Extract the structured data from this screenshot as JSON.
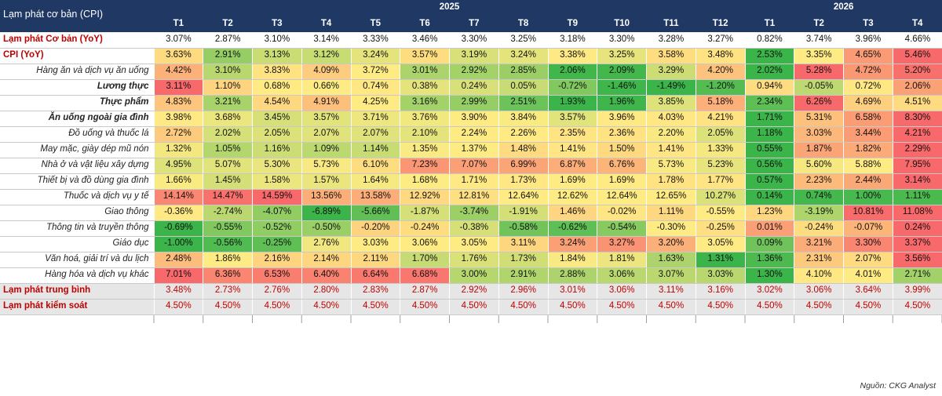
{
  "table_title": "Lạm phát cơ bản (CPI)",
  "years": [
    {
      "label": "2025",
      "span": 12
    },
    {
      "label": "2026",
      "span": 4
    }
  ],
  "months": [
    "T1",
    "T2",
    "T3",
    "T4",
    "T5",
    "T6",
    "T7",
    "T8",
    "T9",
    "T10",
    "T11",
    "T12",
    "T1",
    "T2",
    "T3",
    "T4"
  ],
  "rows": [
    {
      "label": "Lạm phát Cơ bản (YoY)",
      "style": "plain-red",
      "values": [
        "3.07%",
        "2.87%",
        "3.10%",
        "3.14%",
        "3.33%",
        "3.46%",
        "3.30%",
        "3.25%",
        "3.18%",
        "3.30%",
        "3.28%",
        "3.27%",
        "0.82%",
        "3.74%",
        "3.96%",
        "4.66%"
      ]
    },
    {
      "label": "CPI (YoY)",
      "style": "heat-red",
      "values": [
        "3.63%",
        "2.91%",
        "3.13%",
        "3.12%",
        "3.24%",
        "3.57%",
        "3.19%",
        "3.24%",
        "3.38%",
        "3.25%",
        "3.58%",
        "3.48%",
        "2.53%",
        "3.35%",
        "4.65%",
        "5.46%"
      ]
    },
    {
      "label": "Hàng ăn và dịch vụ ăn uống",
      "style": "heat",
      "values": [
        "4.42%",
        "3.10%",
        "3.83%",
        "4.09%",
        "3.72%",
        "3.01%",
        "2.92%",
        "2.85%",
        "2.06%",
        "2.09%",
        "3.29%",
        "4.20%",
        "2.02%",
        "5.28%",
        "4.72%",
        "5.20%"
      ]
    },
    {
      "label": "Lương thực",
      "style": "heat-bold",
      "values": [
        "3.11%",
        "1.10%",
        "0.68%",
        "0.66%",
        "0.74%",
        "0.38%",
        "0.24%",
        "0.05%",
        "-0.72%",
        "-1.46%",
        "-1.49%",
        "-1.20%",
        "0.94%",
        "-0.05%",
        "0.72%",
        "2.06%"
      ]
    },
    {
      "label": "Thực phẩm",
      "style": "heat-bold",
      "values": [
        "4.83%",
        "3.21%",
        "4.54%",
        "4.91%",
        "4.25%",
        "3.16%",
        "2.99%",
        "2.51%",
        "1.93%",
        "1.96%",
        "3.85%",
        "5.18%",
        "2.34%",
        "6.26%",
        "4.69%",
        "4.51%"
      ]
    },
    {
      "label": "Ăn uống ngoài gia đình",
      "style": "heat-bold",
      "values": [
        "3.98%",
        "3.68%",
        "3.45%",
        "3.57%",
        "3.71%",
        "3.76%",
        "3.90%",
        "3.84%",
        "3.57%",
        "3.96%",
        "4.03%",
        "4.21%",
        "1.71%",
        "5.31%",
        "6.58%",
        "8.30%"
      ]
    },
    {
      "label": "Đồ uống và thuốc lá",
      "style": "heat",
      "values": [
        "2.72%",
        "2.02%",
        "2.05%",
        "2.07%",
        "2.07%",
        "2.10%",
        "2.24%",
        "2.26%",
        "2.35%",
        "2.36%",
        "2.20%",
        "2.05%",
        "1.18%",
        "3.03%",
        "3.44%",
        "4.21%"
      ]
    },
    {
      "label": "May mặc, giày dép mũ nón",
      "style": "heat",
      "values": [
        "1.32%",
        "1.05%",
        "1.16%",
        "1.09%",
        "1.14%",
        "1.35%",
        "1.37%",
        "1.48%",
        "1.41%",
        "1.50%",
        "1.41%",
        "1.33%",
        "0.55%",
        "1.87%",
        "1.82%",
        "2.29%"
      ]
    },
    {
      "label": "Nhà ở và vật liệu xây dựng",
      "style": "heat",
      "values": [
        "4.95%",
        "5.07%",
        "5.30%",
        "5.73%",
        "6.10%",
        "7.23%",
        "7.07%",
        "6.99%",
        "6.87%",
        "6.76%",
        "5.73%",
        "5.23%",
        "0.56%",
        "5.60%",
        "5.88%",
        "7.95%"
      ]
    },
    {
      "label": "Thiết bị và đồ dùng gia đình",
      "style": "heat",
      "values": [
        "1.66%",
        "1.45%",
        "1.58%",
        "1.57%",
        "1.64%",
        "1.68%",
        "1.71%",
        "1.73%",
        "1.69%",
        "1.69%",
        "1.78%",
        "1.77%",
        "0.57%",
        "2.23%",
        "2.44%",
        "3.14%"
      ]
    },
    {
      "label": "Thuốc và dịch vụ y tế",
      "style": "heat",
      "values": [
        "14.14%",
        "14.47%",
        "14.59%",
        "13.56%",
        "13.58%",
        "12.92%",
        "12.81%",
        "12.64%",
        "12.62%",
        "12.64%",
        "12.65%",
        "10.27%",
        "0.14%",
        "0.74%",
        "1.00%",
        "1.11%"
      ]
    },
    {
      "label": "Giao thông",
      "style": "heat",
      "values": [
        "-0.36%",
        "-2.74%",
        "-4.07%",
        "-6.89%",
        "-5.66%",
        "-1.87%",
        "-3.74%",
        "-1.91%",
        "1.46%",
        "-0.02%",
        "1.11%",
        "-0.55%",
        "1.23%",
        "-3.19%",
        "10.81%",
        "11.08%"
      ]
    },
    {
      "label": "Thông tin và truyền thông",
      "style": "heat",
      "values": [
        "-0.69%",
        "-0.55%",
        "-0.52%",
        "-0.50%",
        "-0.20%",
        "-0.24%",
        "-0.38%",
        "-0.58%",
        "-0.62%",
        "-0.54%",
        "-0.30%",
        "-0.25%",
        "0.01%",
        "-0.24%",
        "-0.07%",
        "0.24%"
      ]
    },
    {
      "label": "Giáo dục",
      "style": "heat",
      "values": [
        "-1.00%",
        "-0.56%",
        "-0.25%",
        "2.76%",
        "3.03%",
        "3.06%",
        "3.05%",
        "3.11%",
        "3.24%",
        "3.27%",
        "3.20%",
        "3.05%",
        "0.09%",
        "3.21%",
        "3.30%",
        "3.37%"
      ]
    },
    {
      "label": "Văn hoá, giải trí và du lịch",
      "style": "heat",
      "values": [
        "2.48%",
        "1.86%",
        "2.16%",
        "2.14%",
        "2.11%",
        "1.70%",
        "1.76%",
        "1.73%",
        "1.84%",
        "1.81%",
        "1.63%",
        "1.31%",
        "1.36%",
        "2.31%",
        "2.07%",
        "3.56%"
      ]
    },
    {
      "label": "Hàng hóa và dịch vụ khác",
      "style": "heat",
      "values": [
        "7.01%",
        "6.36%",
        "6.53%",
        "6.40%",
        "6.64%",
        "6.68%",
        "3.00%",
        "2.91%",
        "2.88%",
        "3.06%",
        "3.07%",
        "3.03%",
        "1.30%",
        "4.10%",
        "4.01%",
        "2.71%"
      ]
    },
    {
      "label": "Lạm phát trung bình",
      "style": "grey",
      "values": [
        "3.48%",
        "2.73%",
        "2.76%",
        "2.80%",
        "2.83%",
        "2.87%",
        "2.92%",
        "2.96%",
        "3.01%",
        "3.06%",
        "3.11%",
        "3.16%",
        "3.02%",
        "3.06%",
        "3.64%",
        "3.99%"
      ]
    },
    {
      "label": "Lạm phát kiểm soát",
      "style": "grey",
      "values": [
        "4.50%",
        "4.50%",
        "4.50%",
        "4.50%",
        "4.50%",
        "4.50%",
        "4.50%",
        "4.50%",
        "4.50%",
        "4.50%",
        "4.50%",
        "4.50%",
        "4.50%",
        "4.50%",
        "4.50%",
        "4.50%"
      ]
    }
  ],
  "heat_colors": {
    "green": "#3bb54a",
    "yellow": "#ffeb84",
    "red": "#f8696b"
  },
  "footer": "Nguồn: CKG Analyst",
  "chart_data": {
    "type": "heatmap",
    "title": "Lạm phát cơ bản (CPI)",
    "x": [
      "T1 2025",
      "T2 2025",
      "T3 2025",
      "T4 2025",
      "T5 2025",
      "T6 2025",
      "T7 2025",
      "T8 2025",
      "T9 2025",
      "T10 2025",
      "T11 2025",
      "T12 2025",
      "T1 2026",
      "T2 2026",
      "T3 2026",
      "T4 2026"
    ],
    "unit": "%",
    "color_scale": "row-wise green-yellow-red"
  }
}
